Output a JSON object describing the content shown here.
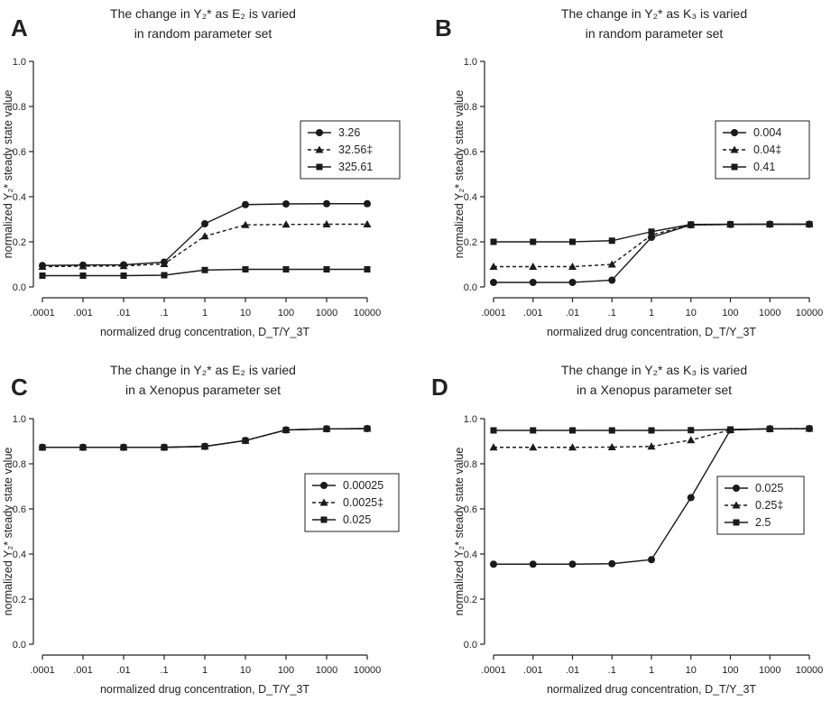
{
  "chart_data": [
    {
      "type": "line",
      "panel_label": "A",
      "title_line1": "The change in Y₂* as E₂ is varied",
      "title_line2": "in random parameter set",
      "xlabel": "normalized drug concentration, D_T/Y_3T",
      "ylabel": "normalized Y₂* steady state value",
      "x_ticks": [
        ".0001",
        ".001",
        ".01",
        ".1",
        "1",
        "10",
        "100",
        "1000",
        "10000"
      ],
      "x": [
        0.0001,
        0.001,
        0.01,
        0.1,
        1,
        10,
        100,
        1000,
        10000
      ],
      "x_scale": "log",
      "ylim": [
        0,
        1.0
      ],
      "y_ticks": [
        "0.0",
        "0.2",
        "0.4",
        "0.6",
        "0.8",
        "1.0"
      ],
      "legend_position": "right",
      "series": [
        {
          "name": "3.26",
          "marker": "circle",
          "line": "solid",
          "values": [
            0.095,
            0.097,
            0.098,
            0.11,
            0.28,
            0.365,
            0.368,
            0.369,
            0.369
          ]
        },
        {
          "name": "32.56‡",
          "marker": "triangle",
          "line": "dashed",
          "values": [
            0.09,
            0.092,
            0.093,
            0.102,
            0.225,
            0.275,
            0.277,
            0.278,
            0.278
          ]
        },
        {
          "name": "325.61",
          "marker": "square",
          "line": "solid",
          "values": [
            0.05,
            0.05,
            0.05,
            0.052,
            0.075,
            0.078,
            0.078,
            0.078,
            0.078
          ]
        }
      ]
    },
    {
      "type": "line",
      "panel_label": "B",
      "title_line1": "The change in Y₂* as K₃ is varied",
      "title_line2": "in random parameter set",
      "xlabel": "normalized drug concentration, D_T/Y_3T",
      "ylabel": "normalized Y₂* steady state value",
      "x_ticks": [
        ".0001",
        ".001",
        ".01",
        ".1",
        "1",
        "10",
        "100",
        "1000",
        "10000"
      ],
      "x": [
        0.0001,
        0.001,
        0.01,
        0.1,
        1,
        10,
        100,
        1000,
        10000
      ],
      "x_scale": "log",
      "ylim": [
        0,
        1.0
      ],
      "y_ticks": [
        "0.0",
        "0.2",
        "0.4",
        "0.6",
        "0.8",
        "1.0"
      ],
      "legend_position": "right",
      "series": [
        {
          "name": "0.004",
          "marker": "circle",
          "line": "solid",
          "values": [
            0.02,
            0.02,
            0.02,
            0.03,
            0.22,
            0.275,
            0.277,
            0.278,
            0.278
          ]
        },
        {
          "name": "0.04‡",
          "marker": "triangle",
          "line": "dashed",
          "values": [
            0.09,
            0.09,
            0.09,
            0.1,
            0.23,
            0.275,
            0.277,
            0.278,
            0.278
          ]
        },
        {
          "name": "0.41",
          "marker": "square",
          "line": "solid",
          "values": [
            0.2,
            0.2,
            0.2,
            0.205,
            0.245,
            0.277,
            0.278,
            0.278,
            0.278
          ]
        }
      ]
    },
    {
      "type": "line",
      "panel_label": "C",
      "title_line1": "The change in Y₂* as E₂ is varied",
      "title_line2": "in a Xenopus parameter set",
      "xlabel": "normalized drug concentration, D_T/Y_3T",
      "ylabel": "normalized Y₂* steady state value",
      "x_ticks": [
        ".0001",
        ".001",
        ".01",
        ".1",
        "1",
        "10",
        "100",
        "1000",
        "10000"
      ],
      "x": [
        0.0001,
        0.001,
        0.01,
        0.1,
        1,
        10,
        100,
        1000,
        10000
      ],
      "x_scale": "log",
      "ylim": [
        0,
        1.0
      ],
      "y_ticks": [
        "0.0",
        "0.2",
        "0.4",
        "0.6",
        "0.8",
        "1.0"
      ],
      "legend_position": "right",
      "series": [
        {
          "name": "0.00025",
          "marker": "circle",
          "line": "solid",
          "values": [
            0.873,
            0.873,
            0.873,
            0.873,
            0.877,
            0.903,
            0.95,
            0.955,
            0.956
          ]
        },
        {
          "name": "0.0025‡",
          "marker": "triangle",
          "line": "dashed",
          "values": [
            0.873,
            0.873,
            0.873,
            0.873,
            0.877,
            0.903,
            0.95,
            0.955,
            0.956
          ]
        },
        {
          "name": "0.025",
          "marker": "square",
          "line": "solid",
          "values": [
            0.873,
            0.873,
            0.873,
            0.873,
            0.877,
            0.903,
            0.95,
            0.955,
            0.956
          ]
        }
      ]
    },
    {
      "type": "line",
      "panel_label": "D",
      "title_line1": "The change in Y₂* as K₃ is varied",
      "title_line2": "in a Xenopus parameter set",
      "xlabel": "normalized drug concentration, D_T/Y_3T",
      "ylabel": "normalized Y₂* steady state value",
      "x_ticks": [
        ".0001",
        ".001",
        ".01",
        ".1",
        "1",
        "10",
        "100",
        "1000",
        "10000"
      ],
      "x": [
        0.0001,
        0.001,
        0.01,
        0.1,
        1,
        10,
        100,
        1000,
        10000
      ],
      "x_scale": "log",
      "ylim": [
        0,
        1.0
      ],
      "y_ticks": [
        "0.0",
        "0.2",
        "0.4",
        "0.6",
        "0.8",
        "1.0"
      ],
      "legend_position": "right",
      "series": [
        {
          "name": "0.025",
          "marker": "circle",
          "line": "solid",
          "values": [
            0.355,
            0.355,
            0.355,
            0.357,
            0.375,
            0.65,
            0.95,
            0.955,
            0.956
          ]
        },
        {
          "name": "0.25‡",
          "marker": "triangle",
          "line": "dashed",
          "values": [
            0.873,
            0.873,
            0.873,
            0.874,
            0.877,
            0.905,
            0.95,
            0.955,
            0.956
          ]
        },
        {
          "name": "2.5",
          "marker": "square",
          "line": "solid",
          "values": [
            0.948,
            0.948,
            0.948,
            0.948,
            0.948,
            0.949,
            0.952,
            0.955,
            0.956
          ]
        }
      ]
    }
  ]
}
